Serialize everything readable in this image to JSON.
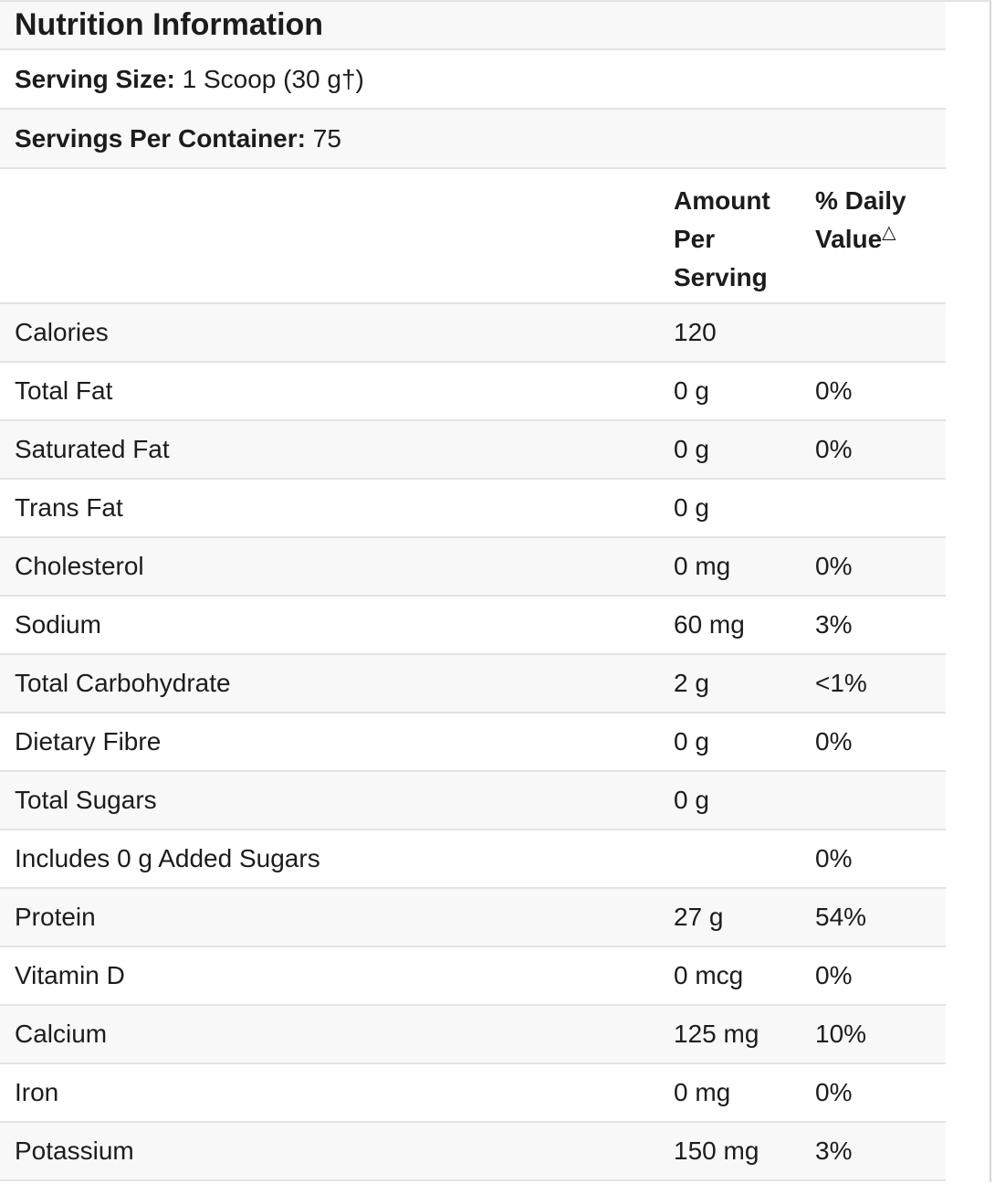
{
  "table": {
    "title": "Nutrition Information",
    "serving_size_label": "Serving Size:",
    "serving_size_value": "1 Scoop (30 g†)",
    "servings_per_container_label": "Servings Per Container:",
    "servings_per_container_value": "75",
    "columns": {
      "amount": "Amount Per Serving",
      "daily_value": "% Daily Value",
      "daily_value_mark": "△"
    },
    "rows": [
      {
        "label": "Calories",
        "amount": "120",
        "dv": ""
      },
      {
        "label": "Total Fat",
        "amount": "0 g",
        "dv": "0%"
      },
      {
        "label": "Saturated Fat",
        "amount": "0 g",
        "dv": "0%"
      },
      {
        "label": "Trans Fat",
        "amount": "0 g",
        "dv": ""
      },
      {
        "label": "Cholesterol",
        "amount": "0 mg",
        "dv": "0%"
      },
      {
        "label": "Sodium",
        "amount": "60 mg",
        "dv": "3%"
      },
      {
        "label": "Total Carbohydrate",
        "amount": "2 g",
        "dv": "<1%"
      },
      {
        "label": "Dietary Fibre",
        "amount": "0 g",
        "dv": "0%"
      },
      {
        "label": "Total Sugars",
        "amount": "0 g",
        "dv": ""
      },
      {
        "label": "Includes 0 g Added Sugars",
        "amount": "",
        "dv": "0%"
      },
      {
        "label": "Protein",
        "amount": "27 g",
        "dv": "54%"
      },
      {
        "label": "Vitamin D",
        "amount": "0 mcg",
        "dv": "0%"
      },
      {
        "label": "Calcium",
        "amount": "125 mg",
        "dv": "10%"
      },
      {
        "label": "Iron",
        "amount": "0 mg",
        "dv": "0%"
      },
      {
        "label": "Potassium",
        "amount": "150 mg",
        "dv": "3%"
      }
    ],
    "colors": {
      "stripe_bg": "#f8f8f8",
      "row_border": "#e3e3e3",
      "page_border": "#d5d5d5",
      "text": "#1c1c1c"
    }
  }
}
